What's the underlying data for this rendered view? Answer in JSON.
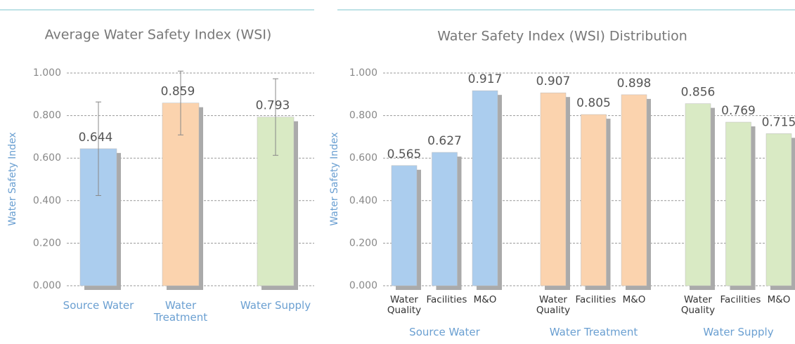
{
  "chart_data": [
    {
      "type": "bar",
      "title": "Average Water Safety Index (WSI)",
      "ylabel": "Water Safety Index",
      "categories": [
        "Source Water",
        "Water Treatment",
        "Water Supply"
      ],
      "values": [
        0.644,
        0.859,
        0.793
      ],
      "errors": [
        0.22,
        0.15,
        0.18
      ],
      "colors": [
        "#abcdee",
        "#fbd3ae",
        "#d9eac4"
      ],
      "ylim": [
        0,
        1
      ],
      "yticks": [
        {
          "value": 0,
          "label": "0.000"
        },
        {
          "value": 0.2,
          "label": "0.200"
        },
        {
          "value": 0.4,
          "label": "0.400"
        },
        {
          "value": 0.6,
          "label": "0.600"
        },
        {
          "value": 0.8,
          "label": "0.800"
        },
        {
          "value": 1,
          "label": "1.000"
        }
      ],
      "grid": true
    },
    {
      "type": "grouped_bar",
      "title": "Water Safety Index (WSI) Distribution",
      "ylabel": "Water Safety Index",
      "groups": [
        {
          "name": "Source Water",
          "color": "#abcdee",
          "categories": [
            "Water Quality",
            "Facilities",
            "M&O"
          ],
          "values": [
            0.565,
            0.627,
            0.917
          ]
        },
        {
          "name": "Water Treatment",
          "color": "#fbd3ae",
          "categories": [
            "Water Quality",
            "Facilities",
            "M&O"
          ],
          "values": [
            0.907,
            0.805,
            0.898
          ]
        },
        {
          "name": "Water Supply",
          "color": "#d9eac4",
          "categories": [
            "Water Quality",
            "Facilities",
            "M&O"
          ],
          "values": [
            0.856,
            0.769,
            0.715
          ]
        }
      ],
      "ylim": [
        0,
        1
      ],
      "yticks": [
        {
          "value": 0,
          "label": "0.000"
        },
        {
          "value": 0.2,
          "label": "0.200"
        },
        {
          "value": 0.4,
          "label": "0.400"
        },
        {
          "value": 0.6,
          "label": "0.600"
        },
        {
          "value": 0.8,
          "label": "0.800"
        },
        {
          "value": 1,
          "label": "1.000"
        }
      ],
      "grid": true
    }
  ]
}
